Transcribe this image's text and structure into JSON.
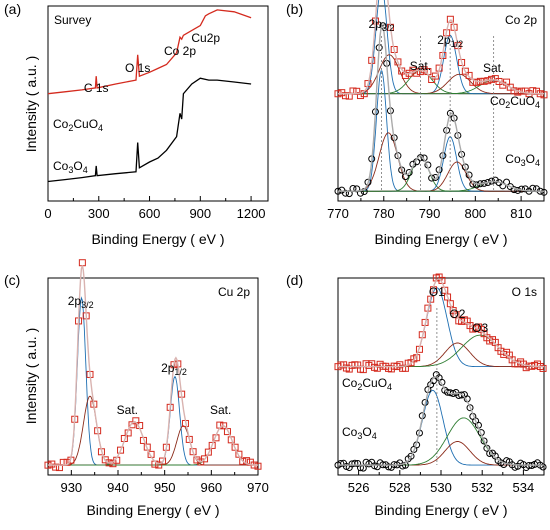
{
  "chart_data": [
    {
      "panel": "(a)",
      "type": "line",
      "title": "Survey",
      "xlabel": "Binding Energy ( eV )",
      "ylabel": "Intensity ( a.u. )",
      "xlim": [
        0,
        1300
      ],
      "xticks": [
        0,
        300,
        600,
        900,
        1200
      ],
      "ytick_labels": false,
      "annotations": [
        {
          "text": "C 1s",
          "x": 285
        },
        {
          "text": "O 1s",
          "x": 530
        },
        {
          "text": "Co 2p",
          "x": 780
        },
        {
          "text": "Cu2p",
          "x": 932
        }
      ],
      "labels": [
        {
          "text": "Co",
          "sub": "2",
          "text2": "CuO",
          "sub2": "4"
        },
        {
          "text": "Co",
          "sub": "3",
          "text2": "O",
          "sub2": "4"
        }
      ],
      "series": [
        {
          "name": "Co2CuO4",
          "color": "#d42a1e",
          "x": [
            0,
            100,
            200,
            280,
            285,
            290,
            400,
            520,
            530,
            540,
            600,
            650,
            700,
            760,
            780,
            790,
            800,
            900,
            930,
            950,
            1000,
            1100,
            1200
          ],
          "y": [
            0.55,
            0.56,
            0.57,
            0.58,
            0.64,
            0.58,
            0.6,
            0.62,
            0.75,
            0.64,
            0.66,
            0.68,
            0.7,
            0.76,
            0.84,
            0.83,
            0.85,
            0.9,
            0.95,
            0.96,
            0.98,
            0.97,
            0.94
          ]
        },
        {
          "name": "Co3O4",
          "color": "#000000",
          "x": [
            0,
            100,
            200,
            280,
            285,
            290,
            400,
            520,
            530,
            540,
            600,
            650,
            700,
            760,
            780,
            790,
            800,
            850,
            900,
            950,
            1000,
            1100,
            1200
          ],
          "y": [
            0.1,
            0.11,
            0.12,
            0.13,
            0.18,
            0.13,
            0.14,
            0.15,
            0.3,
            0.17,
            0.2,
            0.22,
            0.26,
            0.33,
            0.45,
            0.42,
            0.55,
            0.6,
            0.63,
            0.62,
            0.62,
            0.61,
            0.6
          ]
        }
      ]
    },
    {
      "panel": "(b)",
      "type": "line",
      "title": "Co 2p",
      "xlabel": "Binding Energy ( eV )",
      "xlim": [
        770,
        815
      ],
      "xticks": [
        770,
        780,
        790,
        800,
        810
      ],
      "annotations": [
        {
          "text": "2p",
          "sub": "3/2",
          "x": 779.5
        },
        {
          "text": "Sat.",
          "x": 788
        },
        {
          "text": "2p",
          "sub": "1/2",
          "x": 794.5
        },
        {
          "text": "Sat.",
          "x": 804
        }
      ],
      "labels": [
        {
          "text": "Co",
          "sub": "2",
          "text2": "CuO",
          "sub2": "4"
        },
        {
          "text": "Co",
          "sub": "3",
          "text2": "O",
          "sub2": "4"
        }
      ],
      "dotted_lines_x": [
        779.5,
        788,
        794.5,
        804
      ],
      "series": [
        {
          "name": "Co2CuO4",
          "peaks": [
            [
              779.5,
              0.55,
              1.2
            ],
            [
              781.2,
              0.2,
              2.2
            ],
            [
              788,
              0.12,
              2.5
            ],
            [
              794.5,
              0.3,
              1.4
            ],
            [
              796.5,
              0.1,
              2.5
            ],
            [
              804,
              0.07,
              3
            ]
          ],
          "baseline": 0.55
        },
        {
          "name": "Co3O4",
          "peaks": [
            [
              779.5,
              0.62,
              1.1
            ],
            [
              781,
              0.3,
              2
            ],
            [
              788,
              0.18,
              1.8
            ],
            [
              794.5,
              0.28,
              1.4
            ],
            [
              796,
              0.15,
              2
            ],
            [
              804,
              0.05,
              3
            ]
          ],
          "baseline": 0.05
        }
      ]
    },
    {
      "panel": "(c)",
      "type": "line",
      "title": "Cu 2p",
      "xlabel": "Binding Energy ( eV )",
      "ylabel": "Intensity ( a.u. )",
      "xlim": [
        925,
        970
      ],
      "xticks": [
        930,
        940,
        950,
        960,
        970
      ],
      "annotations": [
        {
          "text": "2p",
          "sub": "3/2",
          "x": 932
        },
        {
          "text": "Sat.",
          "x": 942
        },
        {
          "text": "2p",
          "sub": "1/2",
          "x": 952
        },
        {
          "text": "Sat.",
          "x": 962
        }
      ],
      "series": [
        {
          "name": "Cu 2p",
          "peaks": [
            [
              932.2,
              0.85,
              0.9
            ],
            [
              934,
              0.35,
              1.4
            ],
            [
              943.5,
              0.22,
              2
            ],
            [
              952.2,
              0.45,
              1
            ],
            [
              954,
              0.2,
              1.4
            ],
            [
              962.5,
              0.2,
              2
            ]
          ],
          "baseline": 0.05
        }
      ]
    },
    {
      "panel": "(d)",
      "type": "line",
      "title": "O 1s",
      "xlabel": "Binding Energy ( eV )",
      "xlim": [
        525,
        535
      ],
      "xticks": [
        526,
        528,
        530,
        532,
        534
      ],
      "annotations": [
        {
          "text": "O1",
          "x": 529.8
        },
        {
          "text": "O2",
          "x": 530.8
        },
        {
          "text": "O3",
          "x": 531.9
        }
      ],
      "labels": [
        {
          "text": "Co",
          "sub": "2",
          "text2": "CuO",
          "sub2": "4"
        },
        {
          "text": "Co",
          "sub": "3",
          "text2": "O",
          "sub2": "4"
        }
      ],
      "dotted_lines_x": [
        529.8
      ],
      "series": [
        {
          "name": "Co2CuO4",
          "peaks": [
            [
              529.8,
              0.4,
              0.5
            ],
            [
              530.8,
              0.12,
              0.6
            ],
            [
              531.9,
              0.16,
              0.9
            ]
          ],
          "baseline": 0.55
        },
        {
          "name": "Co3O4",
          "peaks": [
            [
              529.6,
              0.38,
              0.5
            ],
            [
              530.8,
              0.12,
              0.6
            ],
            [
              531.1,
              0.24,
              0.8
            ]
          ],
          "baseline": 0.05
        }
      ]
    }
  ]
}
